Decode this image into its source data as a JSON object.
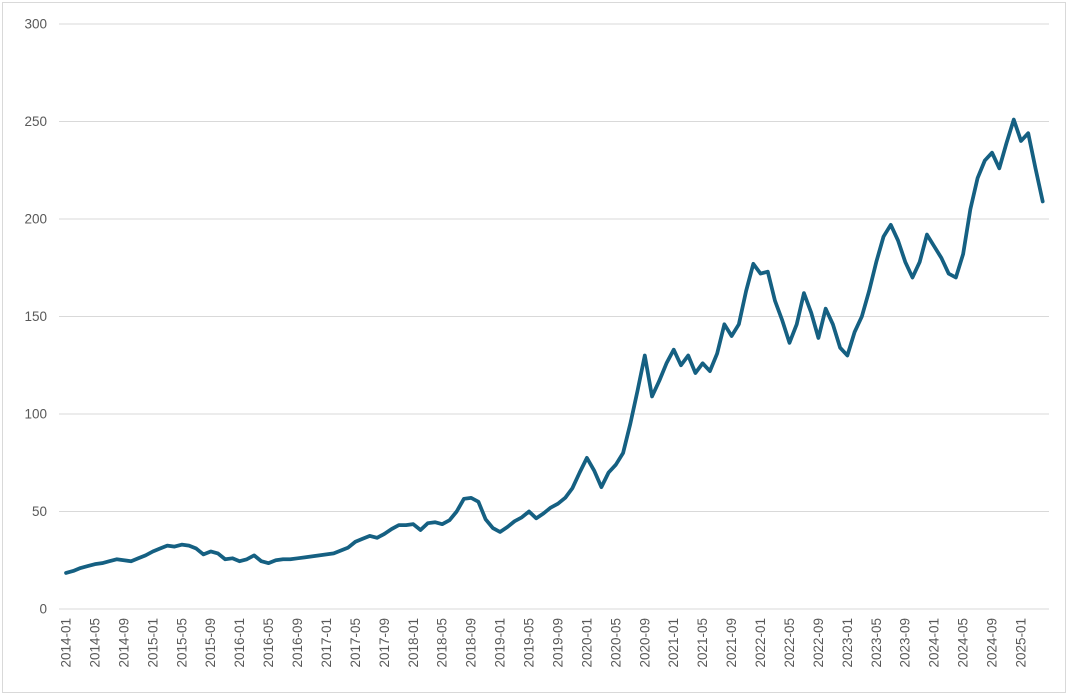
{
  "chart_data": {
    "type": "line",
    "title": "",
    "xlabel": "",
    "ylabel": "",
    "legend": "none",
    "grid": "horizontal",
    "ylim": [
      0,
      300
    ],
    "y_ticks": [
      0,
      50,
      100,
      150,
      200,
      250,
      300
    ],
    "x_tick_labels": [
      "2014-01",
      "2014-05",
      "2014-09",
      "2015-01",
      "2015-05",
      "2015-09",
      "2016-01",
      "2016-05",
      "2016-09",
      "2017-01",
      "2017-05",
      "2017-09",
      "2018-01",
      "2018-05",
      "2018-09",
      "2019-01",
      "2019-05",
      "2019-09",
      "2020-01",
      "2020-05",
      "2020-09",
      "2021-01",
      "2021-05",
      "2021-09",
      "2022-01",
      "2022-05",
      "2022-09",
      "2023-01",
      "2023-05",
      "2023-09",
      "2024-01",
      "2024-05",
      "2024-09",
      "2025-01"
    ],
    "x_tick_every_n_months": 4,
    "x_start": "2014-01",
    "x_end": "2025-04",
    "months": [
      "2014-01",
      "2014-02",
      "2014-03",
      "2014-04",
      "2014-05",
      "2014-06",
      "2014-07",
      "2014-08",
      "2014-09",
      "2014-10",
      "2014-11",
      "2014-12",
      "2015-01",
      "2015-02",
      "2015-03",
      "2015-04",
      "2015-05",
      "2015-06",
      "2015-07",
      "2015-08",
      "2015-09",
      "2015-10",
      "2015-11",
      "2015-12",
      "2016-01",
      "2016-02",
      "2016-03",
      "2016-04",
      "2016-05",
      "2016-06",
      "2016-07",
      "2016-08",
      "2016-09",
      "2016-10",
      "2016-11",
      "2016-12",
      "2017-01",
      "2017-02",
      "2017-03",
      "2017-04",
      "2017-05",
      "2017-06",
      "2017-07",
      "2017-08",
      "2017-09",
      "2017-10",
      "2017-11",
      "2017-12",
      "2018-01",
      "2018-02",
      "2018-03",
      "2018-04",
      "2018-05",
      "2018-06",
      "2018-07",
      "2018-08",
      "2018-09",
      "2018-10",
      "2018-11",
      "2018-12",
      "2019-01",
      "2019-02",
      "2019-03",
      "2019-04",
      "2019-05",
      "2019-06",
      "2019-07",
      "2019-08",
      "2019-09",
      "2019-10",
      "2019-11",
      "2019-12",
      "2020-01",
      "2020-02",
      "2020-03",
      "2020-04",
      "2020-05",
      "2020-06",
      "2020-07",
      "2020-08",
      "2020-09",
      "2020-10",
      "2020-11",
      "2020-12",
      "2021-01",
      "2021-02",
      "2021-03",
      "2021-04",
      "2021-05",
      "2021-06",
      "2021-07",
      "2021-08",
      "2021-09",
      "2021-10",
      "2021-11",
      "2021-12",
      "2022-01",
      "2022-02",
      "2022-03",
      "2022-04",
      "2022-05",
      "2022-06",
      "2022-07",
      "2022-08",
      "2022-09",
      "2022-10",
      "2022-11",
      "2022-12",
      "2023-01",
      "2023-02",
      "2023-03",
      "2023-04",
      "2023-05",
      "2023-06",
      "2023-07",
      "2023-08",
      "2023-09",
      "2023-10",
      "2023-11",
      "2023-12",
      "2024-01",
      "2024-02",
      "2024-03",
      "2024-04",
      "2024-05",
      "2024-06",
      "2024-07",
      "2024-08",
      "2024-09",
      "2024-10",
      "2024-11",
      "2024-12",
      "2025-01",
      "2025-02",
      "2025-03",
      "2025-04"
    ],
    "series": [
      {
        "name": "value",
        "values": [
          18.5,
          19.5,
          21,
          22,
          23,
          23.5,
          24.5,
          25.5,
          25,
          24.5,
          26,
          27.5,
          29.5,
          31,
          32.5,
          32,
          33,
          32.5,
          31,
          28,
          29.5,
          28.5,
          25.5,
          26,
          24.5,
          25.5,
          27.5,
          24.5,
          23.5,
          25,
          25.5,
          25.5,
          26,
          26.5,
          27,
          27.5,
          28,
          28.5,
          30,
          31.5,
          34.5,
          36,
          37.5,
          36.5,
          38.5,
          41,
          43,
          43,
          43.5,
          40.5,
          44,
          44.5,
          43.5,
          45.5,
          50,
          56.5,
          57,
          55,
          46,
          41.5,
          39.5,
          42,
          45,
          47,
          50,
          46.5,
          49,
          52,
          54,
          57,
          62,
          70,
          77.5,
          71,
          62.5,
          70,
          74,
          80,
          95,
          112,
          130,
          109,
          117,
          126,
          133,
          125,
          130,
          121,
          126,
          122,
          131,
          146,
          140,
          146,
          163,
          177,
          172,
          173,
          158,
          148,
          136.5,
          146,
          162,
          152,
          139,
          154,
          146,
          134,
          130,
          142,
          150,
          163,
          178,
          191,
          197,
          189,
          178,
          170,
          178,
          192,
          186,
          180,
          172,
          170,
          182,
          205,
          221,
          230,
          234,
          226,
          239,
          251,
          240,
          244,
          226,
          209
        ]
      }
    ],
    "colors": {
      "line": "#156082",
      "gridline": "#d9d9d9",
      "axis_line": "#d9d9d9",
      "tick_label": "#595959",
      "background": "#ffffff",
      "border": "#d9d9d9"
    }
  }
}
